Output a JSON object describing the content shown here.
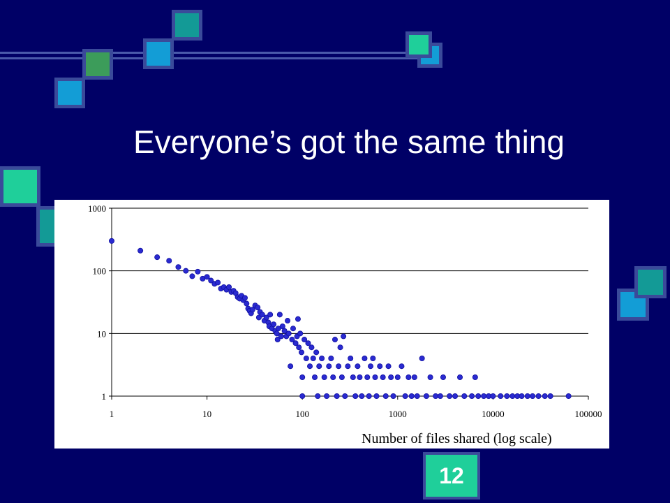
{
  "slide": {
    "title": "Everyone’s got the same thing",
    "page_number": "12"
  },
  "colors": {
    "background": "#000066",
    "accent_green": "#1fcf9a",
    "accent_blue": "#139dd6",
    "accent_olive": "#3c9c5a",
    "accent_teal": "#139a96",
    "marker": "#2a2ad0"
  },
  "chart_data": {
    "type": "scatter",
    "title": "",
    "xlabel": "Number of files shared (log scale)",
    "ylabel": "",
    "x_scale": "log",
    "y_scale": "log",
    "xlim": [
      1,
      100000
    ],
    "ylim": [
      1,
      1000
    ],
    "x_ticks": [
      "1",
      "10",
      "100",
      "1000",
      "10000",
      "100000"
    ],
    "y_ticks": [
      "1",
      "10",
      "100",
      "1000"
    ],
    "grid": "horizontal",
    "legend": "none",
    "points": [
      [
        1,
        300
      ],
      [
        2,
        210
      ],
      [
        3,
        165
      ],
      [
        4,
        145
      ],
      [
        5,
        115
      ],
      [
        6,
        100
      ],
      [
        7,
        82
      ],
      [
        8,
        97
      ],
      [
        9,
        75
      ],
      [
        10,
        80
      ],
      [
        11,
        70
      ],
      [
        12,
        62
      ],
      [
        13,
        65
      ],
      [
        14,
        52
      ],
      [
        15,
        55
      ],
      [
        16,
        50
      ],
      [
        17,
        55
      ],
      [
        18,
        46
      ],
      [
        19,
        48
      ],
      [
        20,
        44
      ],
      [
        21,
        38
      ],
      [
        22,
        36
      ],
      [
        23,
        40
      ],
      [
        24,
        34
      ],
      [
        25,
        37
      ],
      [
        26,
        30
      ],
      [
        27,
        25
      ],
      [
        28,
        23
      ],
      [
        29,
        21
      ],
      [
        30,
        24
      ],
      [
        32,
        28
      ],
      [
        34,
        26
      ],
      [
        35,
        18
      ],
      [
        36,
        22
      ],
      [
        38,
        20
      ],
      [
        40,
        16
      ],
      [
        42,
        18
      ],
      [
        44,
        15
      ],
      [
        45,
        13
      ],
      [
        46,
        20
      ],
      [
        48,
        12
      ],
      [
        50,
        14
      ],
      [
        52,
        11
      ],
      [
        54,
        10
      ],
      [
        55,
        8
      ],
      [
        56,
        12
      ],
      [
        58,
        20
      ],
      [
        60,
        9
      ],
      [
        62,
        13
      ],
      [
        65,
        11
      ],
      [
        68,
        9
      ],
      [
        70,
        16
      ],
      [
        72,
        10
      ],
      [
        75,
        3
      ],
      [
        78,
        8
      ],
      [
        80,
        12
      ],
      [
        85,
        7
      ],
      [
        88,
        9
      ],
      [
        90,
        17
      ],
      [
        92,
        6
      ],
      [
        95,
        10
      ],
      [
        98,
        5
      ],
      [
        100,
        2
      ],
      [
        100,
        1
      ],
      [
        105,
        8
      ],
      [
        110,
        4
      ],
      [
        115,
        7
      ],
      [
        120,
        3
      ],
      [
        125,
        6
      ],
      [
        130,
        4
      ],
      [
        135,
        2
      ],
      [
        140,
        5
      ],
      [
        145,
        1
      ],
      [
        150,
        3
      ],
      [
        160,
        4
      ],
      [
        170,
        2
      ],
      [
        180,
        1
      ],
      [
        190,
        3
      ],
      [
        200,
        4
      ],
      [
        210,
        2
      ],
      [
        220,
        8
      ],
      [
        230,
        1
      ],
      [
        240,
        3
      ],
      [
        250,
        6
      ],
      [
        260,
        2
      ],
      [
        270,
        9
      ],
      [
        280,
        1
      ],
      [
        300,
        3
      ],
      [
        320,
        4
      ],
      [
        340,
        2
      ],
      [
        360,
        1
      ],
      [
        380,
        3
      ],
      [
        400,
        2
      ],
      [
        420,
        1
      ],
      [
        450,
        4
      ],
      [
        480,
        2
      ],
      [
        500,
        1
      ],
      [
        520,
        3
      ],
      [
        550,
        4
      ],
      [
        580,
        2
      ],
      [
        600,
        1
      ],
      [
        650,
        3
      ],
      [
        700,
        2
      ],
      [
        750,
        1
      ],
      [
        800,
        3
      ],
      [
        850,
        2
      ],
      [
        900,
        1
      ],
      [
        1000,
        2
      ],
      [
        1100,
        3
      ],
      [
        1200,
        1
      ],
      [
        1300,
        2
      ],
      [
        1400,
        1
      ],
      [
        1500,
        2
      ],
      [
        1600,
        1
      ],
      [
        1800,
        4
      ],
      [
        2000,
        1
      ],
      [
        2200,
        2
      ],
      [
        2500,
        1
      ],
      [
        2800,
        1
      ],
      [
        3000,
        2
      ],
      [
        3500,
        1
      ],
      [
        4000,
        1
      ],
      [
        4500,
        2
      ],
      [
        5000,
        1
      ],
      [
        6000,
        1
      ],
      [
        6500,
        2
      ],
      [
        7000,
        1
      ],
      [
        8000,
        1
      ],
      [
        9000,
        1
      ],
      [
        10000,
        1
      ],
      [
        12000,
        1
      ],
      [
        14000,
        1
      ],
      [
        16000,
        1
      ],
      [
        18000,
        1
      ],
      [
        20000,
        1
      ],
      [
        23000,
        1
      ],
      [
        26000,
        1
      ],
      [
        30000,
        1
      ],
      [
        35000,
        1
      ],
      [
        40000,
        1
      ],
      [
        62000,
        1
      ]
    ]
  }
}
